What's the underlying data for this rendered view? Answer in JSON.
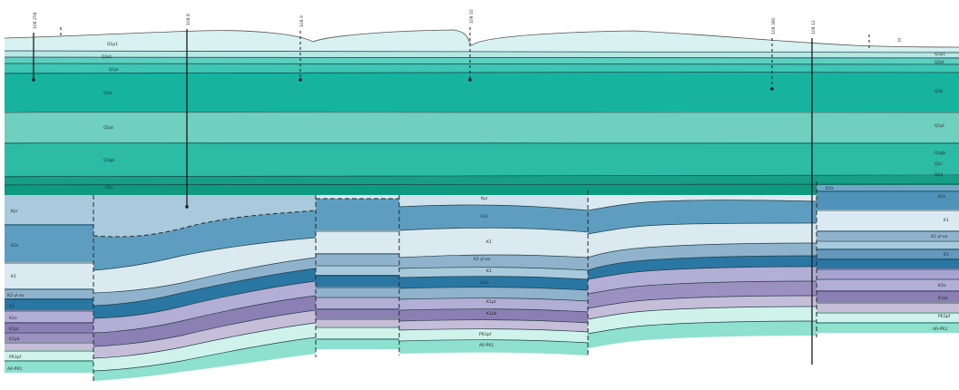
{
  "cross_section": {
    "topography_labels": [
      "108 258",
      "108 8",
      "108 9",
      "108 10",
      "108 380",
      "108 12",
      "III"
    ],
    "upper_unit_labels": [
      "Q1p1",
      "Q1kt",
      "Q1pr",
      "Q1b",
      "Q1pt",
      "Q1gb",
      "Q1c",
      "Q1d"
    ],
    "lower_block_labels": [
      [
        "Kpr",
        "K2s",
        "K1",
        "K2 yl-oo",
        "K1",
        "K2o",
        "K1pt",
        "K1pb",
        "PR3pf",
        "AR-PR1"
      ],
      [
        "Kpr",
        "K2s",
        "K1",
        "K2 yl-oo",
        "K1",
        "K2o",
        "K1pt",
        "K1pb",
        "PR3pf",
        "AR-PR1"
      ],
      [
        "K2a",
        "K2s",
        "K1",
        "K2 yl-oo",
        "K1",
        "K2o",
        "K1pt",
        "PR3pf",
        "AR-PR1"
      ]
    ],
    "colors": {
      "q_dark": "#12a08b",
      "q_mid": "#2cbca6",
      "q_light": "#6fd5c5",
      "q_pale": "#cdeeee",
      "k_dark": "#2a77a4",
      "k_mid": "#5d9ec0",
      "k_light": "#a8cadc",
      "k_pale": "#dbe9f1",
      "violet": "#8b7fb4",
      "violet_light": "#c6bdd9",
      "aqua": "#8ee0cf",
      "aqua_pale": "#cff3ea"
    }
  }
}
